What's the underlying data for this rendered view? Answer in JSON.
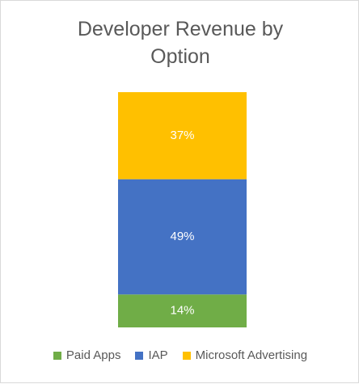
{
  "chart_data": {
    "type": "bar",
    "stacked": true,
    "title_line1": "Developer Revenue by",
    "title_line2": "Option",
    "categories": [
      ""
    ],
    "series": [
      {
        "name": "Paid Apps",
        "values": [
          14
        ],
        "label": "14%",
        "color": "#70ad47"
      },
      {
        "name": "IAP",
        "values": [
          49
        ],
        "label": "49%",
        "color": "#4472c4"
      },
      {
        "name": "Microsoft Advertising",
        "values": [
          37
        ],
        "label": "37%",
        "color": "#ffc000"
      }
    ],
    "ylim": [
      0,
      100
    ],
    "grid": false,
    "legend_position": "bottom"
  }
}
